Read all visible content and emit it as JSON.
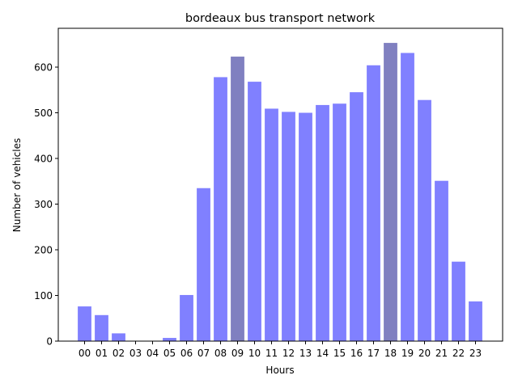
{
  "chart_data": {
    "type": "bar",
    "title": "bordeaux bus transport network",
    "xlabel": "Hours",
    "ylabel": "Number of vehicles",
    "categories": [
      "00",
      "01",
      "02",
      "03",
      "04",
      "05",
      "06",
      "07",
      "08",
      "09",
      "10",
      "11",
      "12",
      "13",
      "14",
      "15",
      "16",
      "17",
      "18",
      "19",
      "20",
      "21",
      "22",
      "23"
    ],
    "values": [
      76,
      57,
      17,
      0,
      0,
      7,
      101,
      335,
      578,
      623,
      568,
      509,
      502,
      500,
      517,
      520,
      545,
      604,
      653,
      631,
      528,
      351,
      174,
      87
    ],
    "highlighted": [
      "09",
      "18"
    ],
    "ylim": [
      0,
      685
    ],
    "yticks": [
      0,
      100,
      200,
      300,
      400,
      500,
      600
    ],
    "grid": false,
    "colors": {
      "bar": "#8080ff",
      "bar_highlight": "#8080c0",
      "axis": "#000000",
      "background": "#ffffff"
    }
  }
}
